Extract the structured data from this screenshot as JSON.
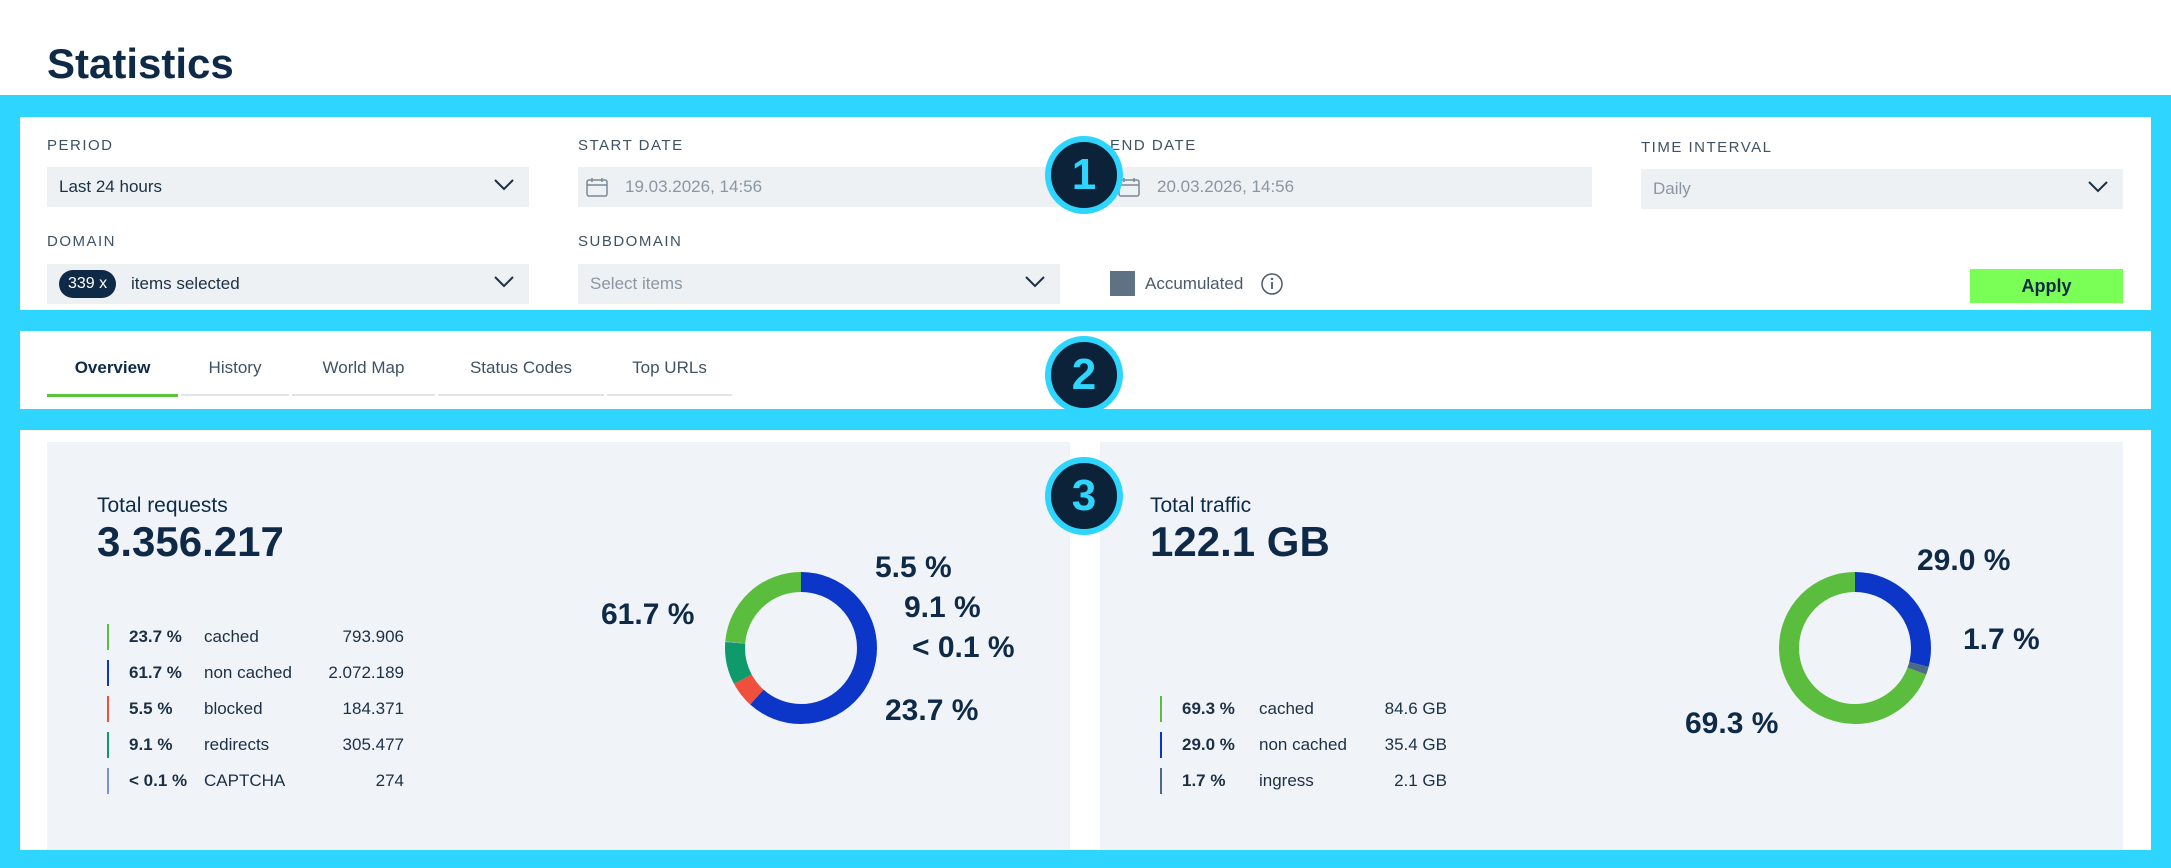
{
  "page_title": "Statistics",
  "filters": {
    "period_label": "PERIOD",
    "period_value": "Last 24 hours",
    "start_date_label": "START DATE",
    "start_date_value": "19.03.2026, 14:56",
    "end_date_label": "END DATE",
    "end_date_value": "20.03.2026, 14:56",
    "time_interval_label": "TIME INTERVAL",
    "time_interval_value": "Daily",
    "domain_label": "DOMAIN",
    "domain_badge": "339 x",
    "domain_value": "items selected",
    "subdomain_label": "SUBDOMAIN",
    "subdomain_placeholder": "Select items",
    "accumulated_label": "Accumulated",
    "apply_label": "Apply"
  },
  "annotations": [
    "1",
    "2",
    "3"
  ],
  "tabs": [
    {
      "label": "Overview",
      "active": true
    },
    {
      "label": "History",
      "active": false
    },
    {
      "label": "World Map",
      "active": false
    },
    {
      "label": "Status Codes",
      "active": false
    },
    {
      "label": "Top URLs",
      "active": false
    }
  ],
  "colors": {
    "cached": "#5bbd3e",
    "non_cached": "#0b36c8",
    "blocked": "#f04f3e",
    "redirects": "#0e9a6b",
    "captcha": "#7b8fd8",
    "ingress": "#4c6b85",
    "accent_band": "#2ed5ff",
    "apply": "#7aff56"
  },
  "requests": {
    "title": "Total requests",
    "total": "3.356.217",
    "legend": [
      {
        "pct": "23.7 %",
        "name": "cached",
        "value": "793.906",
        "color": "#5bbd3e"
      },
      {
        "pct": "61.7 %",
        "name": "non cached",
        "value": "2.072.189",
        "color": "#0b36c8"
      },
      {
        "pct": "5.5 %",
        "name": "blocked",
        "value": "184.371",
        "color": "#f04f3e"
      },
      {
        "pct": "9.1 %",
        "name": "redirects",
        "value": "305.477",
        "color": "#0e9a6b"
      },
      {
        "pct": "< 0.1 %",
        "name": "CAPTCHA",
        "value": "274",
        "color": "#7b8fd8"
      }
    ],
    "donut_labels": [
      "61.7 %",
      "5.5 %",
      "9.1 %",
      "< 0.1 %",
      "23.7 %"
    ]
  },
  "traffic": {
    "title": "Total traffic",
    "total": "122.1 GB",
    "legend": [
      {
        "pct": "69.3 %",
        "name": "cached",
        "value": "84.6 GB",
        "color": "#5bbd3e"
      },
      {
        "pct": "29.0 %",
        "name": "non cached",
        "value": "35.4 GB",
        "color": "#0b36c8"
      },
      {
        "pct": "1.7 %",
        "name": "ingress",
        "value": "2.1 GB",
        "color": "#4c6b85"
      }
    ],
    "donut_labels": [
      "29.0 %",
      "1.7 %",
      "69.3 %"
    ]
  },
  "chart_data": [
    {
      "type": "pie",
      "categories": [
        "non cached",
        "blocked",
        "redirects",
        "CAPTCHA",
        "cached"
      ],
      "values": [
        61.7,
        5.5,
        9.1,
        0.1,
        23.7
      ],
      "title": "Total requests"
    },
    {
      "type": "pie",
      "categories": [
        "non cached",
        "ingress",
        "cached"
      ],
      "values": [
        29.0,
        1.7,
        69.3
      ],
      "title": "Total traffic"
    }
  ]
}
